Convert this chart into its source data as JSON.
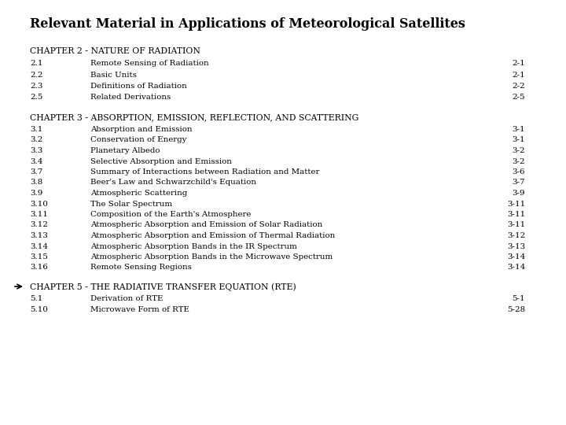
{
  "title": "Relevant Material in Applications of Meteorological Satellites",
  "background_color": "#ffffff",
  "text_color": "#000000",
  "chapter2_header": "CHAPTER 2 - NATURE OF RADIATION",
  "chapter2_entries": [
    {
      "num": "2.1",
      "title": "Remote Sensing of Radiation",
      "page": "2-1"
    },
    {
      "num": "2.2",
      "title": "Basic Units",
      "page": "2-1"
    },
    {
      "num": "2.3",
      "title": "Definitions of Radiation",
      "page": "2-2"
    },
    {
      "num": "2.5",
      "title": "Related Derivations",
      "page": "2-5"
    }
  ],
  "chapter3_header": "CHAPTER 3 - ABSORPTION, EMISSION, REFLECTION, AND SCATTERING",
  "chapter3_entries": [
    {
      "num": "3.1",
      "title": "Absorption and Emission",
      "page": "3-1"
    },
    {
      "num": "3.2",
      "title": "Conservation of Energy",
      "page": "3-1"
    },
    {
      "num": "3.3",
      "title": "Planetary Albedo",
      "page": "3-2"
    },
    {
      "num": "3.4",
      "title": "Selective Absorption and Emission",
      "page": "3-2"
    },
    {
      "num": "3.7",
      "title": "Summary of Interactions between Radiation and Matter",
      "page": "3-6"
    },
    {
      "num": "3.8",
      "title": "Beer's Law and Schwarzchild's Equation",
      "page": "3-7"
    },
    {
      "num": "3.9",
      "title": "Atmospheric Scattering",
      "page": "3-9"
    },
    {
      "num": "3.10",
      "title": "The Solar Spectrum",
      "page": "3-11"
    },
    {
      "num": "3.11",
      "title": "Composition of the Earth's Atmosphere",
      "page": "3-11"
    },
    {
      "num": "3.12",
      "title": "Atmospheric Absorption and Emission of Solar Radiation",
      "page": "3-11"
    },
    {
      "num": "3.13",
      "title": "Atmospheric Absorption and Emission of Thermal Radiation",
      "page": "3-12"
    },
    {
      "num": "3.14",
      "title": "Atmospheric Absorption Bands in the IR Spectrum",
      "page": "3-13"
    },
    {
      "num": "3.15",
      "title": "Atmospheric Absorption Bands in the Microwave Spectrum",
      "page": "3-14"
    },
    {
      "num": "3.16",
      "title": "Remote Sensing Regions",
      "page": "3-14"
    }
  ],
  "chapter5_header": "CHAPTER 5 - THE RADIATIVE TRANSFER EQUATION (RTE)",
  "chapter5_entries": [
    {
      "num": "5.1",
      "title": "Derivation of RTE",
      "page": "5-1"
    },
    {
      "num": "5.10",
      "title": "Microwave Form of RTE",
      "page": "5-28"
    }
  ],
  "title_fontsize": 11.5,
  "header_fontsize": 7.8,
  "entry_fontsize": 7.4
}
